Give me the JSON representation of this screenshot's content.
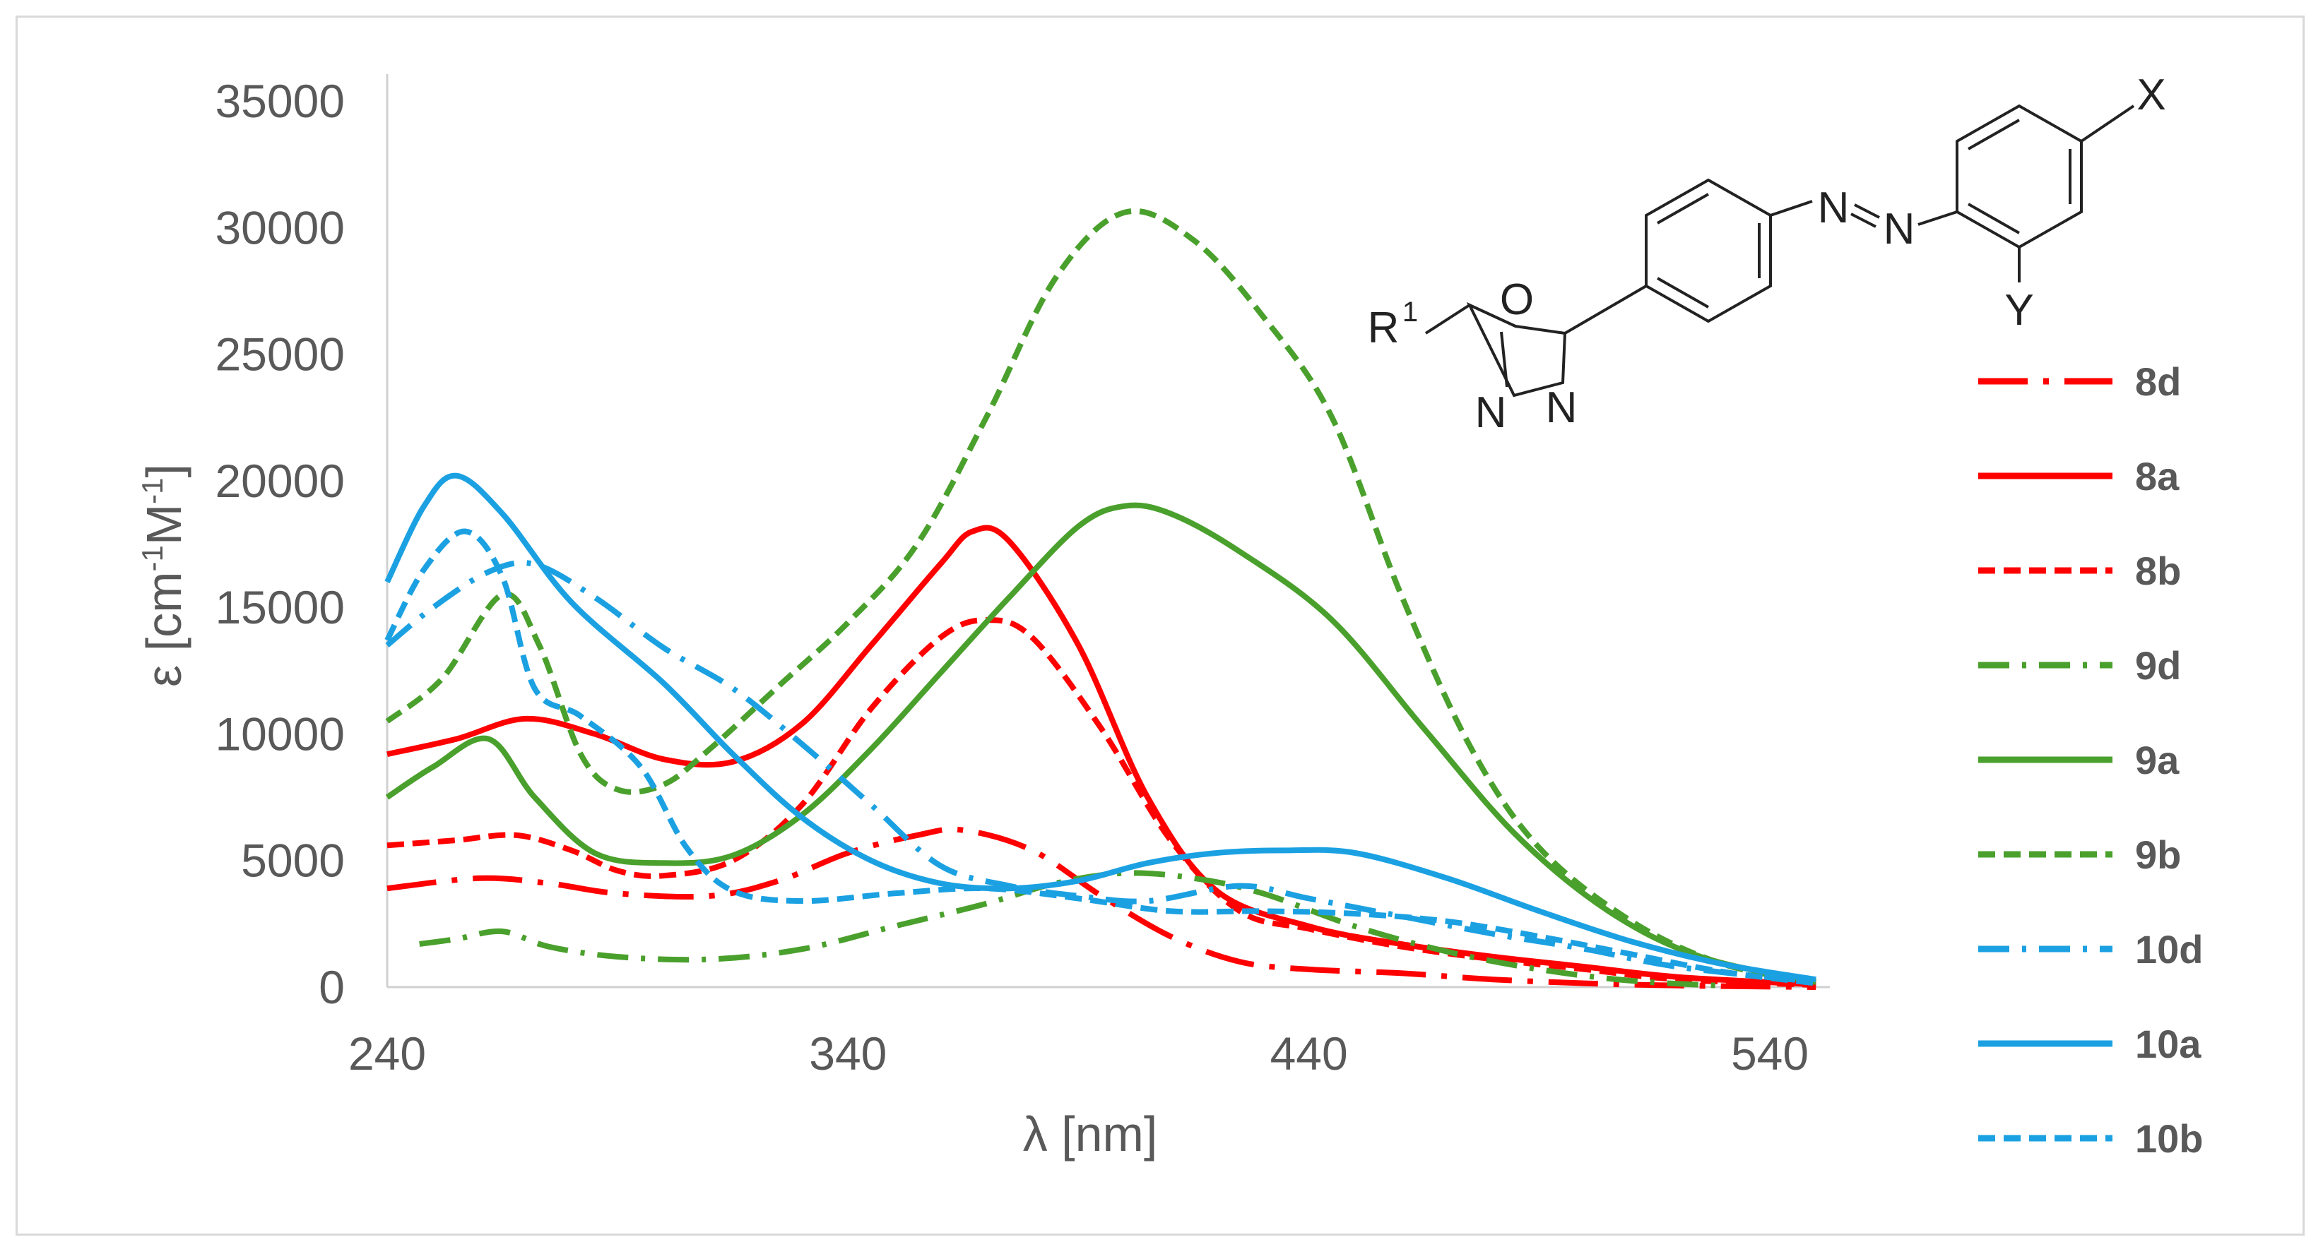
{
  "chart_data": {
    "type": "line",
    "xlabel": "λ [nm]",
    "ylabel_main": "ε [cm",
    "ylabel_sup1": "-1",
    "ylabel_mid": "M",
    "ylabel_sup2": "-1",
    "ylabel_end": "]",
    "xlim": [
      240,
      550
    ],
    "ylim": [
      0,
      35000
    ],
    "x_ticks": [
      240,
      340,
      440,
      540
    ],
    "y_ticks": [
      0,
      5000,
      10000,
      15000,
      20000,
      25000,
      30000,
      35000
    ],
    "legend_position": "right",
    "series": [
      {
        "name": "8d",
        "color": "#ff0000",
        "style": "dashdot-long",
        "points": [
          [
            240,
            3900
          ],
          [
            260,
            4300
          ],
          [
            275,
            4100
          ],
          [
            290,
            3700
          ],
          [
            310,
            3600
          ],
          [
            325,
            4200
          ],
          [
            340,
            5300
          ],
          [
            355,
            6000
          ],
          [
            365,
            6200
          ],
          [
            380,
            5400
          ],
          [
            395,
            3600
          ],
          [
            410,
            2000
          ],
          [
            425,
            1000
          ],
          [
            440,
            700
          ],
          [
            460,
            550
          ],
          [
            480,
            300
          ],
          [
            500,
            150
          ],
          [
            520,
            60
          ],
          [
            550,
            0
          ]
        ]
      },
      {
        "name": "8a",
        "color": "#ff0000",
        "style": "solid",
        "points": [
          [
            240,
            9200
          ],
          [
            255,
            9800
          ],
          [
            270,
            10600
          ],
          [
            285,
            10000
          ],
          [
            300,
            9000
          ],
          [
            315,
            8900
          ],
          [
            330,
            10400
          ],
          [
            345,
            13500
          ],
          [
            360,
            16700
          ],
          [
            367,
            18000
          ],
          [
            375,
            17600
          ],
          [
            390,
            13500
          ],
          [
            405,
            7500
          ],
          [
            420,
            3800
          ],
          [
            440,
            2400
          ],
          [
            460,
            1700
          ],
          [
            480,
            1200
          ],
          [
            500,
            800
          ],
          [
            520,
            400
          ],
          [
            550,
            100
          ]
        ]
      },
      {
        "name": "8b",
        "color": "#ff0000",
        "style": "dash",
        "points": [
          [
            240,
            5600
          ],
          [
            255,
            5800
          ],
          [
            268,
            6000
          ],
          [
            280,
            5400
          ],
          [
            290,
            4600
          ],
          [
            300,
            4400
          ],
          [
            315,
            5000
          ],
          [
            330,
            7200
          ],
          [
            345,
            11000
          ],
          [
            360,
            13800
          ],
          [
            370,
            14500
          ],
          [
            380,
            13800
          ],
          [
            395,
            10200
          ],
          [
            410,
            5800
          ],
          [
            425,
            3000
          ],
          [
            440,
            2300
          ],
          [
            460,
            1600
          ],
          [
            480,
            1100
          ],
          [
            500,
            700
          ],
          [
            520,
            300
          ],
          [
            550,
            80
          ]
        ]
      },
      {
        "name": "9d",
        "color": "#4aa02c",
        "style": "dashdot",
        "points": [
          [
            247,
            1700
          ],
          [
            255,
            1900
          ],
          [
            265,
            2200
          ],
          [
            275,
            1600
          ],
          [
            290,
            1200
          ],
          [
            310,
            1100
          ],
          [
            330,
            1500
          ],
          [
            350,
            2400
          ],
          [
            370,
            3300
          ],
          [
            385,
            4100
          ],
          [
            400,
            4500
          ],
          [
            415,
            4300
          ],
          [
            430,
            3700
          ],
          [
            450,
            2400
          ],
          [
            470,
            1400
          ],
          [
            490,
            700
          ],
          [
            510,
            250
          ],
          [
            530,
            50
          ]
        ]
      },
      {
        "name": "9a",
        "color": "#4aa02c",
        "style": "solid",
        "points": [
          [
            240,
            7500
          ],
          [
            250,
            8700
          ],
          [
            262,
            9800
          ],
          [
            272,
            7500
          ],
          [
            285,
            5300
          ],
          [
            300,
            4900
          ],
          [
            315,
            5200
          ],
          [
            330,
            6800
          ],
          [
            345,
            9400
          ],
          [
            360,
            12400
          ],
          [
            375,
            15400
          ],
          [
            390,
            18200
          ],
          [
            400,
            19000
          ],
          [
            410,
            18700
          ],
          [
            425,
            17200
          ],
          [
            445,
            14500
          ],
          [
            465,
            10200
          ],
          [
            485,
            6000
          ],
          [
            505,
            3000
          ],
          [
            525,
            1200
          ],
          [
            550,
            200
          ]
        ]
      },
      {
        "name": "9b",
        "color": "#4aa02c",
        "style": "dash",
        "points": [
          [
            240,
            10500
          ],
          [
            252,
            12200
          ],
          [
            265,
            15500
          ],
          [
            273,
            13500
          ],
          [
            282,
            9200
          ],
          [
            290,
            7800
          ],
          [
            300,
            8000
          ],
          [
            310,
            9400
          ],
          [
            325,
            11900
          ],
          [
            340,
            14400
          ],
          [
            355,
            17500
          ],
          [
            370,
            22500
          ],
          [
            385,
            28000
          ],
          [
            400,
            30600
          ],
          [
            415,
            29500
          ],
          [
            430,
            26500
          ],
          [
            445,
            22500
          ],
          [
            460,
            15500
          ],
          [
            475,
            9500
          ],
          [
            490,
            5500
          ],
          [
            510,
            2600
          ],
          [
            530,
            900
          ],
          [
            550,
            200
          ]
        ]
      },
      {
        "name": "10d",
        "color": "#1ba1e2",
        "style": "dashdot",
        "points": [
          [
            240,
            13500
          ],
          [
            250,
            15000
          ],
          [
            262,
            16400
          ],
          [
            272,
            16700
          ],
          [
            285,
            15400
          ],
          [
            300,
            13400
          ],
          [
            315,
            11800
          ],
          [
            330,
            9600
          ],
          [
            345,
            7200
          ],
          [
            360,
            4800
          ],
          [
            375,
            4000
          ],
          [
            390,
            3600
          ],
          [
            405,
            3400
          ],
          [
            425,
            4000
          ],
          [
            440,
            3500
          ],
          [
            460,
            2800
          ],
          [
            480,
            2100
          ],
          [
            500,
            1500
          ],
          [
            520,
            800
          ],
          [
            550,
            200
          ]
        ]
      },
      {
        "name": "10a",
        "color": "#1ba1e2",
        "style": "solid",
        "points": [
          [
            240,
            16000
          ],
          [
            248,
            19000
          ],
          [
            255,
            20200
          ],
          [
            265,
            18700
          ],
          [
            280,
            15200
          ],
          [
            300,
            12000
          ],
          [
            315,
            9200
          ],
          [
            330,
            6700
          ],
          [
            345,
            5000
          ],
          [
            360,
            4100
          ],
          [
            375,
            3900
          ],
          [
            390,
            4200
          ],
          [
            405,
            4900
          ],
          [
            420,
            5300
          ],
          [
            435,
            5400
          ],
          [
            450,
            5300
          ],
          [
            470,
            4300
          ],
          [
            490,
            3000
          ],
          [
            510,
            1800
          ],
          [
            530,
            900
          ],
          [
            550,
            300
          ]
        ]
      },
      {
        "name": "10b",
        "color": "#1ba1e2",
        "style": "dash",
        "points": [
          [
            240,
            13700
          ],
          [
            248,
            16500
          ],
          [
            257,
            18000
          ],
          [
            265,
            16200
          ],
          [
            272,
            11800
          ],
          [
            282,
            10700
          ],
          [
            295,
            8700
          ],
          [
            305,
            5500
          ],
          [
            315,
            3800
          ],
          [
            330,
            3400
          ],
          [
            350,
            3700
          ],
          [
            370,
            3900
          ],
          [
            390,
            3500
          ],
          [
            410,
            3000
          ],
          [
            430,
            3000
          ],
          [
            450,
            2900
          ],
          [
            470,
            2600
          ],
          [
            490,
            2000
          ],
          [
            510,
            1300
          ],
          [
            530,
            600
          ],
          [
            550,
            150
          ]
        ]
      }
    ]
  },
  "structure_labels": {
    "x": "X",
    "y": "Y",
    "r": "R",
    "r_sup": "1",
    "o": "O",
    "n_left": "N",
    "n_right": "N",
    "n_azo1": "N",
    "n_azo2": "N"
  }
}
